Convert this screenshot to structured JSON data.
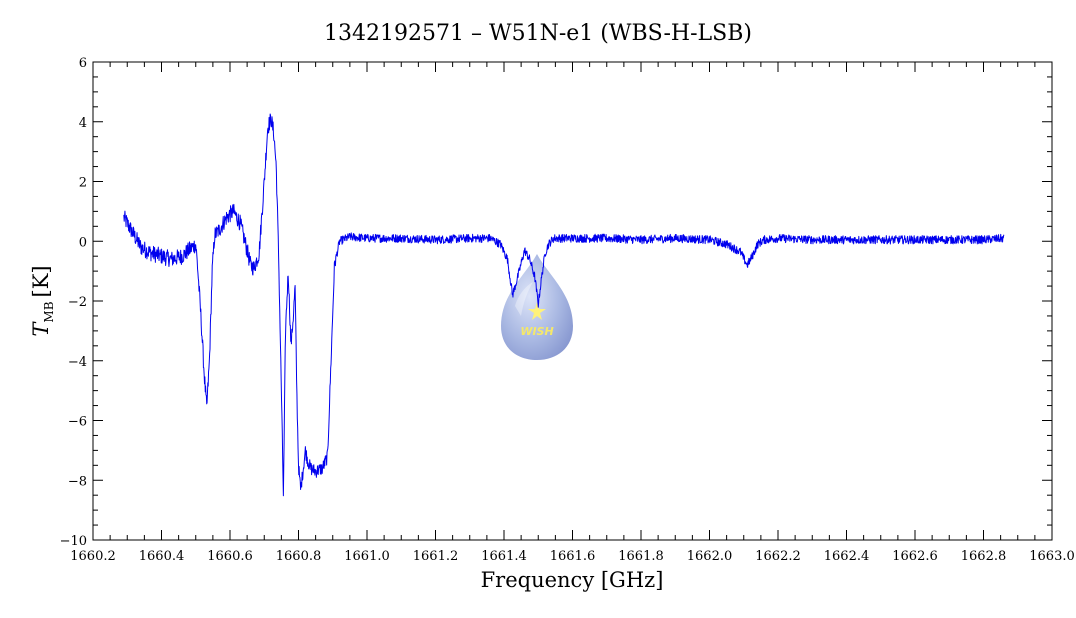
{
  "chart_data": {
    "type": "line",
    "title": "1342192571 – W51N-e1 (WBS-H-LSB)",
    "xlabel": "Frequency [GHz]",
    "ylabel_main": "T",
    "ylabel_sub": "MB",
    "ylabel_unit": "[K]",
    "xlim": [
      1660.2,
      1663.0
    ],
    "ylim": [
      -10,
      6
    ],
    "x_ticks": [
      1660.2,
      1660.4,
      1660.6,
      1660.8,
      1661.0,
      1661.2,
      1661.4,
      1661.6,
      1661.8,
      1662.0,
      1662.2,
      1662.4,
      1662.6,
      1662.8,
      1663.0
    ],
    "x_tick_labels": [
      "1660.2",
      "1660.4",
      "1660.6",
      "1660.8",
      "1661.0",
      "1661.2",
      "1661.4",
      "1661.6",
      "1661.8",
      "1662.0",
      "1662.2",
      "1662.4",
      "1662.6",
      "1662.8",
      "1663.0"
    ],
    "y_ticks": [
      -10,
      -8,
      -6,
      -4,
      -2,
      0,
      2,
      4,
      6
    ],
    "y_tick_labels": [
      "−10",
      "−8",
      "−6",
      "−4",
      "−2",
      "0",
      "2",
      "4",
      "6"
    ],
    "grid": false,
    "line_color": "#0000ee",
    "series": [
      {
        "name": "",
        "x": [
          1660.29,
          1660.31,
          1660.34,
          1660.37,
          1660.4,
          1660.43,
          1660.46,
          1660.48,
          1660.5,
          1660.505,
          1660.515,
          1660.525,
          1660.532,
          1660.54,
          1660.548,
          1660.555,
          1660.57,
          1660.59,
          1660.61,
          1660.63,
          1660.65,
          1660.66,
          1660.67,
          1660.685,
          1660.7,
          1660.71,
          1660.72,
          1660.728,
          1660.735,
          1660.742,
          1660.75,
          1660.756,
          1660.762,
          1660.77,
          1660.778,
          1660.785,
          1660.79,
          1660.795,
          1660.8,
          1660.806,
          1660.812,
          1660.82,
          1660.826,
          1660.835,
          1660.85,
          1660.87,
          1660.885,
          1660.895,
          1660.905,
          1660.92,
          1660.95,
          1661.0,
          1661.1,
          1661.2,
          1661.3,
          1661.36,
          1661.39,
          1661.41,
          1661.425,
          1661.44,
          1661.46,
          1661.475,
          1661.49,
          1661.5,
          1661.51,
          1661.52,
          1661.53,
          1661.545,
          1661.56,
          1661.6,
          1661.7,
          1661.8,
          1661.9,
          1662.0,
          1662.05,
          1662.09,
          1662.11,
          1662.125,
          1662.14,
          1662.16,
          1662.2,
          1662.3,
          1662.4,
          1662.5,
          1662.6,
          1662.7,
          1662.8,
          1662.86
        ],
        "y": [
          0.8,
          0.4,
          -0.2,
          -0.4,
          -0.5,
          -0.6,
          -0.5,
          -0.3,
          -0.1,
          -0.8,
          -2.5,
          -4.5,
          -5.6,
          -4.0,
          -1.0,
          0.2,
          0.4,
          0.8,
          1.0,
          0.6,
          -0.3,
          -0.8,
          -0.9,
          -0.4,
          2.0,
          3.8,
          4.1,
          3.6,
          2.5,
          -0.5,
          -5.0,
          -8.6,
          -3.0,
          -1.0,
          -3.5,
          -2.5,
          -1.5,
          -5.0,
          -7.5,
          -8.3,
          -7.8,
          -7.0,
          -7.3,
          -7.6,
          -7.7,
          -7.6,
          -7.2,
          -4.0,
          -0.8,
          0.0,
          0.15,
          0.1,
          0.1,
          0.05,
          0.1,
          0.1,
          -0.1,
          -0.6,
          -1.8,
          -1.2,
          -0.3,
          -0.6,
          -1.2,
          -2.1,
          -1.2,
          -0.4,
          -0.1,
          0.1,
          0.1,
          0.1,
          0.1,
          0.05,
          0.1,
          0.05,
          -0.1,
          -0.35,
          -0.8,
          -0.5,
          -0.1,
          0.05,
          0.1,
          0.05,
          0.05,
          0.05,
          0.05,
          0.05,
          0.05,
          0.1
        ]
      }
    ]
  },
  "logo": {
    "text": "WISH"
  }
}
